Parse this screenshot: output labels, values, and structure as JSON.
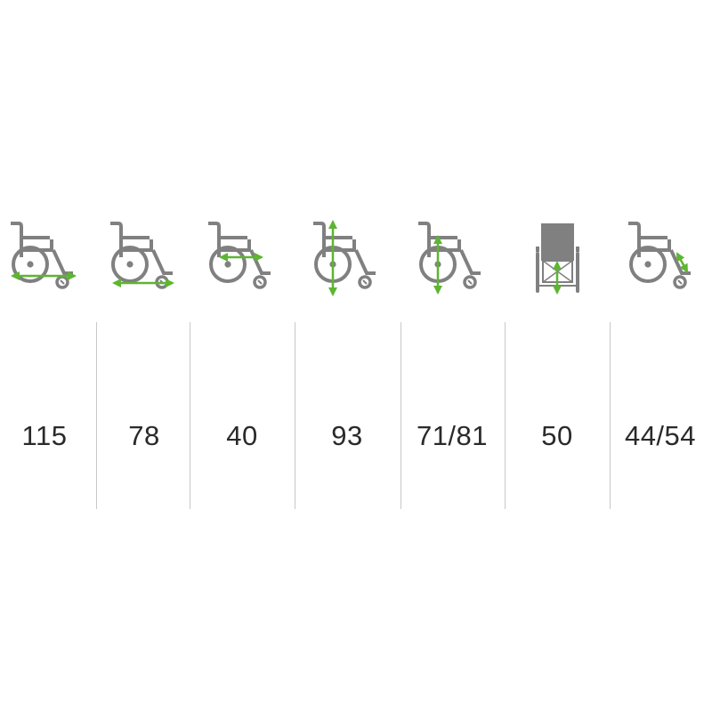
{
  "colors": {
    "icon": "#808080",
    "arrow": "#5db532",
    "divider": "#c8c8c8",
    "text": "#2a2a2a"
  },
  "columns": [
    {
      "icon": "wheelchair-total-length-icon",
      "value": "115"
    },
    {
      "icon": "wheelchair-folded-length-icon",
      "value": "78"
    },
    {
      "icon": "wheelchair-seat-depth-icon",
      "value": "40"
    },
    {
      "icon": "wheelchair-total-height-icon",
      "value": "93"
    },
    {
      "icon": "wheelchair-armrest-height-icon",
      "value": "71/81"
    },
    {
      "icon": "wheelchair-seat-width-icon",
      "value": "50"
    },
    {
      "icon": "wheelchair-legrest-length-icon",
      "value": "44/54"
    }
  ]
}
